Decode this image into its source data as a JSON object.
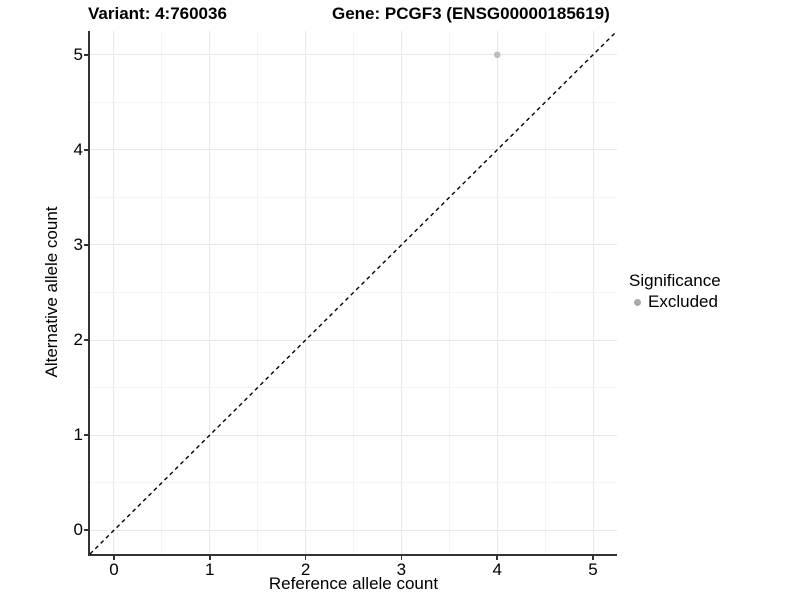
{
  "titles": {
    "variant": "Variant: 4:760036",
    "gene": "Gene: PCGF3 (ENSG00000185619)"
  },
  "chart_data": {
    "type": "scatter",
    "title_left": "Variant: 4:760036",
    "title_right": "Gene: PCGF3 (ENSG00000185619)",
    "xlabel": "Reference allele count",
    "ylabel": "Alternative allele count",
    "xlim": [
      -0.25,
      5.25
    ],
    "ylim": [
      -0.25,
      5.25
    ],
    "xticks": [
      0,
      1,
      2,
      3,
      4,
      5
    ],
    "yticks": [
      0,
      1,
      2,
      3,
      4,
      5
    ],
    "xticks_minor": [
      0.5,
      1.5,
      2.5,
      3.5,
      4.5
    ],
    "yticks_minor": [
      0.5,
      1.5,
      2.5,
      3.5,
      4.5
    ],
    "grid": true,
    "series": [
      {
        "name": "Excluded",
        "color": "#bdbdbd",
        "points": [
          {
            "x": 4,
            "y": 5
          }
        ]
      }
    ],
    "identity_line": {
      "style": "dashed",
      "color": "#000000",
      "from": [
        -0.25,
        -0.25
      ],
      "to": [
        5.25,
        5.25
      ]
    },
    "legend": {
      "title": "Significance",
      "position": "right",
      "entries": [
        {
          "label": "Excluded",
          "color": "#aaaaaa"
        }
      ]
    }
  },
  "colors": {
    "grid_major": "#e8e8e8",
    "grid_minor": "#f4f4f4",
    "axis": "#333333",
    "text": "#000000"
  }
}
